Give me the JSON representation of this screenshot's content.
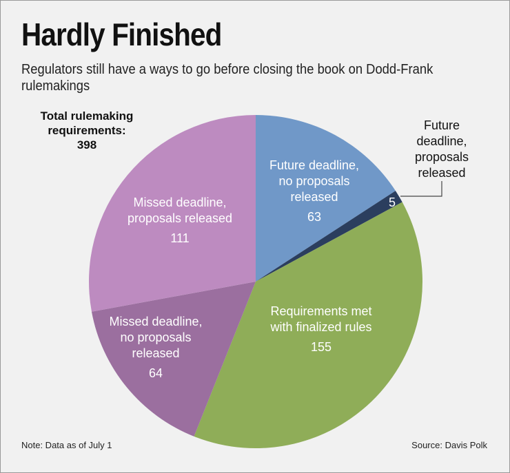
{
  "chart_data": {
    "type": "pie",
    "title": "Hardly Finished",
    "subtitle": "Regulators still have a ways to go before closing the book on Dodd-Frank rulemakings",
    "total_label": "Total rulemaking requirements:",
    "total": 398,
    "categories": [
      "Future deadline, no proposals released",
      "Future deadline, proposals released",
      "Requirements met with finalized rules",
      "Missed deadline, no proposals released",
      "Missed deadline, proposals released"
    ],
    "values": [
      63,
      5,
      155,
      64,
      111
    ],
    "colors": [
      "#7098c8",
      "#2b3e5e",
      "#8fad58",
      "#9b6f9f",
      "#bd8bc0"
    ],
    "note": "Note: Data as of July 1",
    "source": "Source: Davis Polk"
  }
}
